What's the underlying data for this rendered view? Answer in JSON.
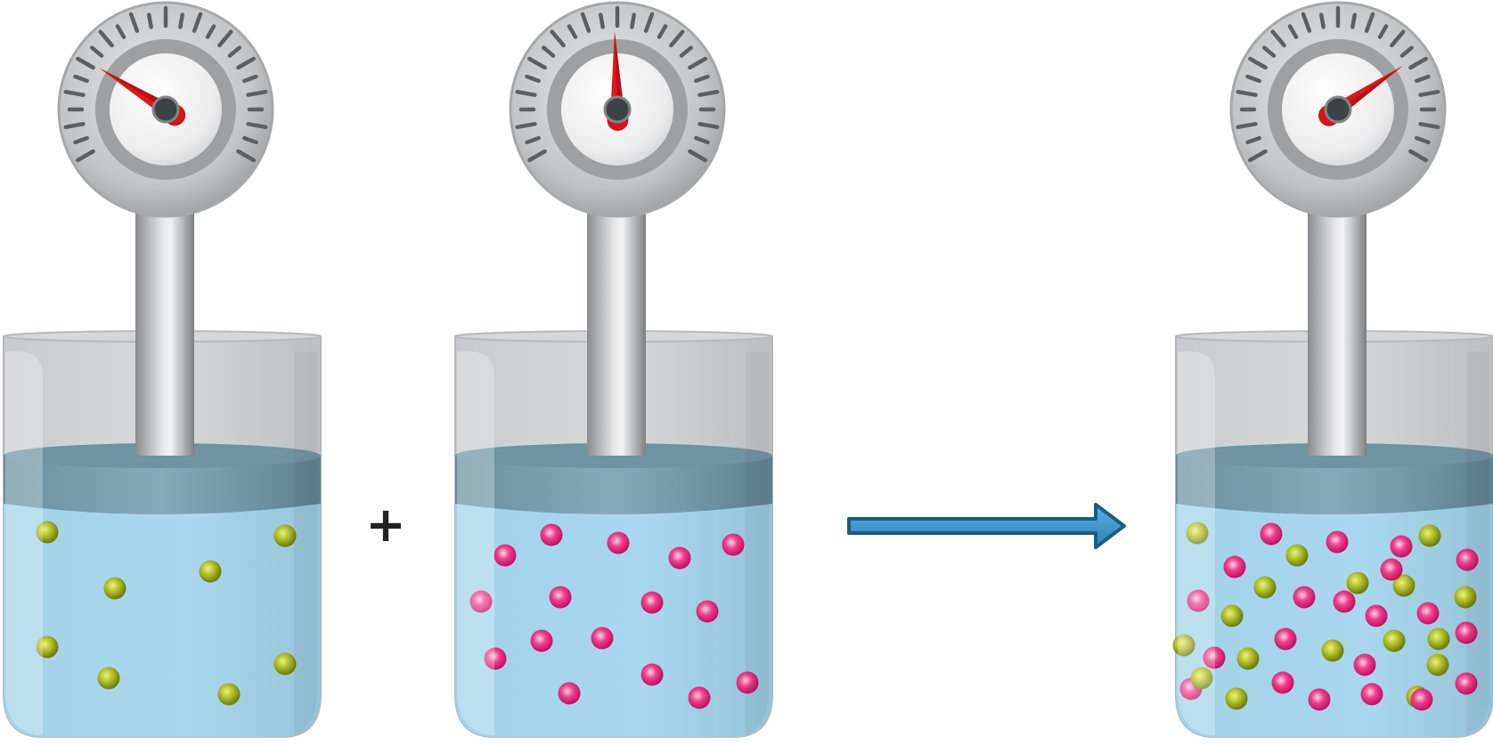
{
  "operator": {
    "plus": "+"
  },
  "colors": {
    "particle_a": "#a4b82a",
    "particle_b": "#e8257a",
    "liquid": "#a9d6ea",
    "liquid_surface": "#6f97a6",
    "arrow": "#3a8fc8",
    "arrow_outline": "#1b5d82",
    "needle": "#e01b1b"
  },
  "containers": [
    {
      "id": "left",
      "gauge_needle_angle_deg": -58,
      "particles": {
        "green": 9,
        "pink": 0
      }
    },
    {
      "id": "middle",
      "gauge_needle_angle_deg": -2,
      "particles": {
        "green": 0,
        "pink": 16
      }
    },
    {
      "id": "right",
      "gauge_needle_angle_deg": 56,
      "particles": {
        "green": 16,
        "pink": 22
      }
    }
  ]
}
